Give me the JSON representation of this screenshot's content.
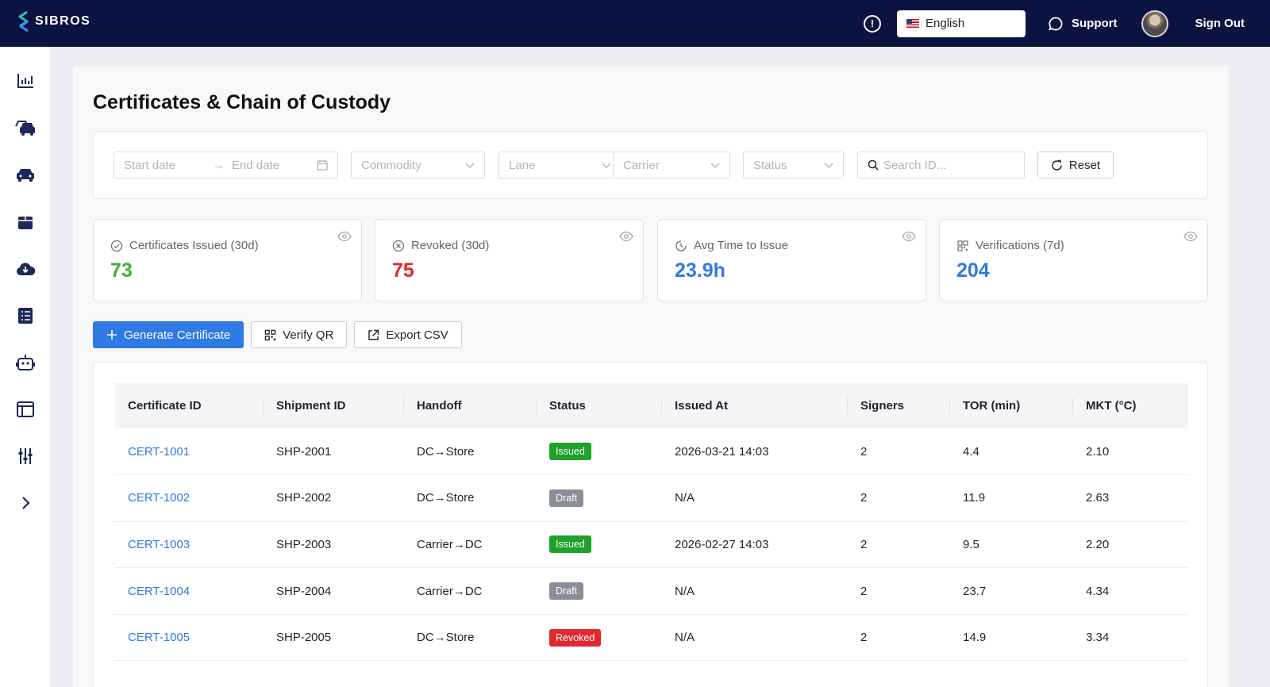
{
  "header": {
    "logo": "SIBROS",
    "language": "English",
    "support": "Support",
    "sign_out": "Sign Out",
    "icons": [
      "info-icon",
      "chat-bubble-icon"
    ]
  },
  "sidebar": {
    "items": [
      {
        "name": "analytics",
        "icon": "bar-chart-icon"
      },
      {
        "name": "fleet",
        "icon": "cars-icon"
      },
      {
        "name": "vehicles",
        "icon": "car-icon"
      },
      {
        "name": "packages",
        "icon": "box-icon"
      },
      {
        "name": "ota",
        "icon": "cloud-download-icon"
      },
      {
        "name": "logs",
        "icon": "list-icon"
      },
      {
        "name": "automation",
        "icon": "robot-icon"
      },
      {
        "name": "layout",
        "icon": "window-icon"
      },
      {
        "name": "settings",
        "icon": "sliders-icon"
      },
      {
        "name": "expand",
        "icon": "chevron-right-icon"
      }
    ]
  },
  "page": {
    "title": "Certificates & Chain of Custody"
  },
  "filters": {
    "start_date": "Start date",
    "end_date": "End date",
    "commodity": "Commodity",
    "lane": "Lane",
    "carrier": "Carrier",
    "status": "Status",
    "search": "Search ID...",
    "reset": "Reset"
  },
  "stats": [
    {
      "label": "Certificates Issued (30d)",
      "value": "73",
      "color": "#3fae3a",
      "icon": "check-circle-icon"
    },
    {
      "label": "Revoked (30d)",
      "value": "75",
      "color": "#e0282e",
      "icon": "x-circle-icon"
    },
    {
      "label": "Avg Time to Issue",
      "value": "23.9h",
      "color": "#2f7ae5",
      "icon": "clock-icon"
    },
    {
      "label": "Verifications (7d)",
      "value": "204",
      "color": "#2f7ae5",
      "icon": "qr-icon"
    }
  ],
  "actions": {
    "generate": "Generate Certificate",
    "verify": "Verify QR",
    "export": "Export CSV"
  },
  "table": {
    "columns": [
      "Certificate ID",
      "Shipment ID",
      "Handoff",
      "Status",
      "Issued At",
      "Signers",
      "TOR (min)",
      "MKT (°C)"
    ],
    "rows": [
      {
        "cert": "CERT-1001",
        "shipment": "SHP-2001",
        "handoff": "DC→Store",
        "status": "Issued",
        "issued_at": "2026-03-21 14:03",
        "signers": "2",
        "tor": "4.4",
        "mkt": "2.10"
      },
      {
        "cert": "CERT-1002",
        "shipment": "SHP-2002",
        "handoff": "DC→Store",
        "status": "Draft",
        "issued_at": "N/A",
        "signers": "2",
        "tor": "11.9",
        "mkt": "2.63"
      },
      {
        "cert": "CERT-1003",
        "shipment": "SHP-2003",
        "handoff": "Carrier→DC",
        "status": "Issued",
        "issued_at": "2026-02-27 14:03",
        "signers": "2",
        "tor": "9.5",
        "mkt": "2.20"
      },
      {
        "cert": "CERT-1004",
        "shipment": "SHP-2004",
        "handoff": "Carrier→DC",
        "status": "Draft",
        "issued_at": "N/A",
        "signers": "2",
        "tor": "23.7",
        "mkt": "4.34"
      },
      {
        "cert": "CERT-1005",
        "shipment": "SHP-2005",
        "handoff": "DC→Store",
        "status": "Revoked",
        "issued_at": "N/A",
        "signers": "2",
        "tor": "14.9",
        "mkt": "3.34"
      }
    ]
  },
  "status_colors": {
    "Issued": "#1fa12a",
    "Draft": "#8a8f97",
    "Revoked": "#e0282e"
  }
}
